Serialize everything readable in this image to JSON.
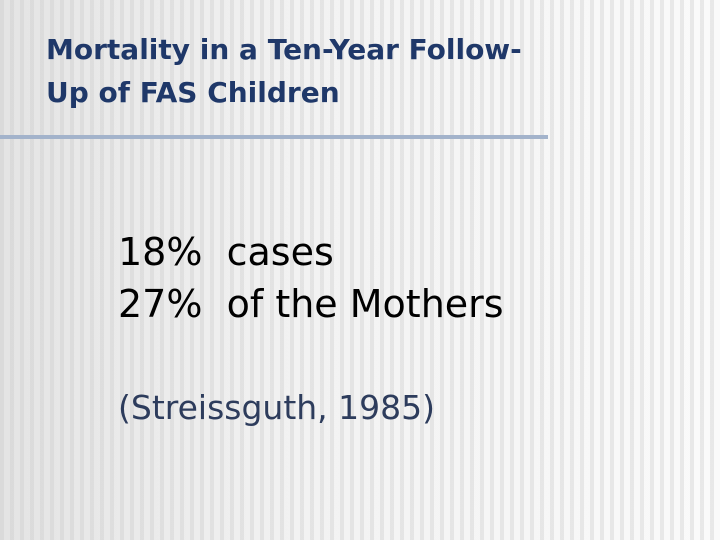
{
  "title": {
    "lines": [
      "Mortality in a Ten-Year Follow-",
      "Up of FAS Children"
    ]
  },
  "body": {
    "lines": [
      "18%  cases",
      "27%  of the Mothers"
    ]
  },
  "citation": "(Streissguth, 1985)"
}
